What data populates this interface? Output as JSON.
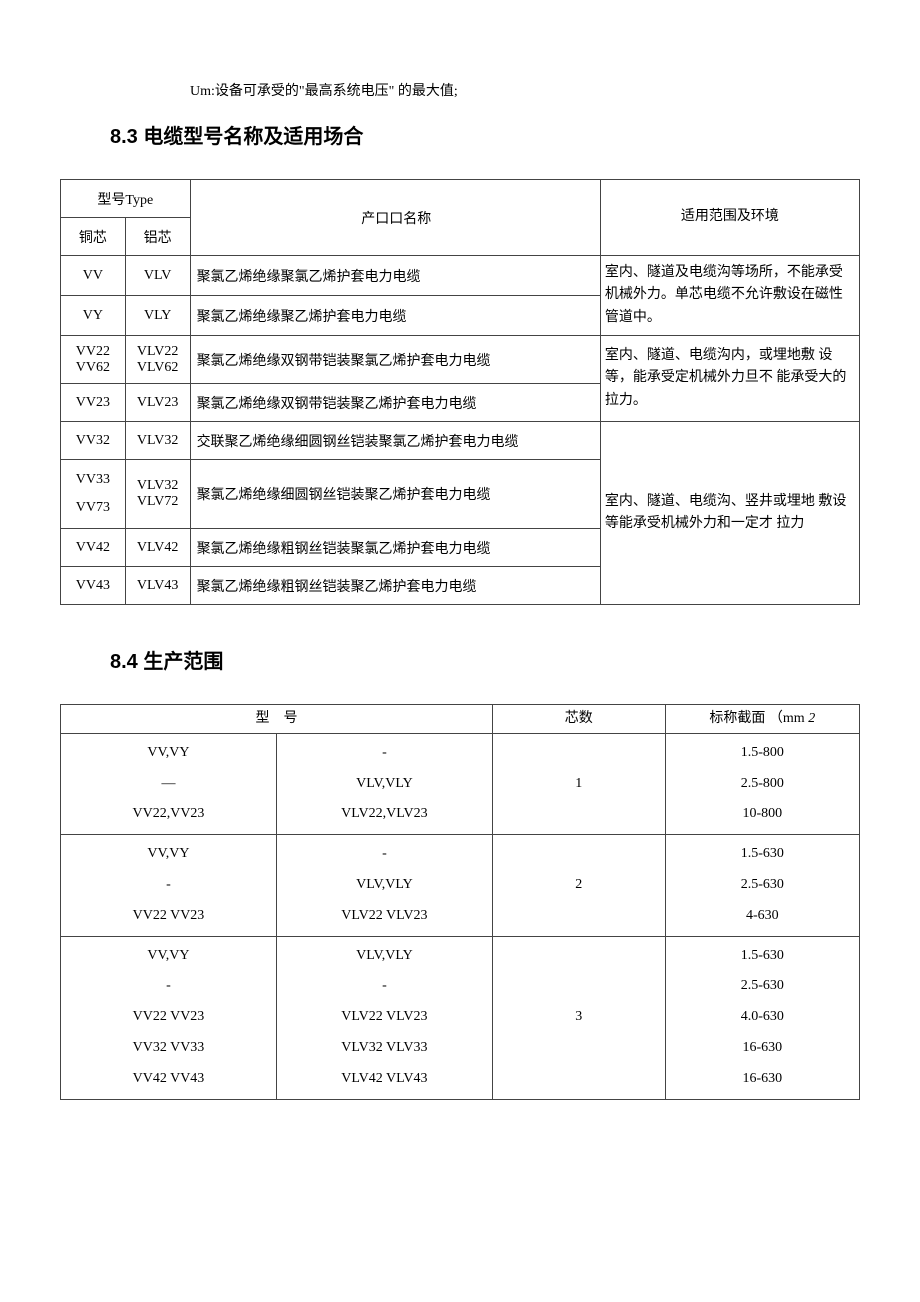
{
  "note_line": "Um:设备可承受的\"最高系统电压\" 的最大值;",
  "section_83_num": "8.3",
  "section_83_title": "电缆型号名称及适用场合",
  "section_84_num": "8.4",
  "section_84_title": "生产范围",
  "table1": {
    "headers": {
      "type_group": "型号Type",
      "copper": "铜芯",
      "aluminum": "铝芯",
      "product_name": "产口口名称",
      "env": "适用范围及环境"
    },
    "rows": [
      {
        "copper": "VV",
        "alum": "VLV",
        "name": "聚氯乙烯绝缘聚氯乙烯护套电力电缆"
      },
      {
        "copper": "VY",
        "alum": "VLY",
        "name": "聚氯乙烯绝缘聚乙烯护套电力电缆"
      },
      {
        "copper": "VV22\nVV62",
        "alum": "VLV22\nVLV62",
        "name": "聚氯乙烯绝缘双钢带铠装聚氯乙烯护套电力电缆"
      },
      {
        "copper": "VV23",
        "alum": "VLV23",
        "name": "聚氯乙烯绝缘双钢带铠装聚乙烯护套电力电缆"
      },
      {
        "copper": "VV32",
        "alum": "VLV32",
        "name": "交联聚乙烯绝缘细圆钢丝铠装聚氯乙烯护套电力电缆"
      },
      {
        "copper": "VV33\nVV73",
        "alum": "VLV32\nVLV72",
        "name": "聚氯乙烯绝缘细圆钢丝铠装聚乙烯护套电力电缆"
      },
      {
        "copper": "VV42",
        "alum": "VLV42",
        "name": "聚氯乙烯绝缘粗钢丝铠装聚氯乙烯护套电力电缆"
      },
      {
        "copper": "VV43",
        "alum": "VLV43",
        "name": "聚氯乙烯绝缘粗钢丝铠装聚乙烯护套电力电缆"
      }
    ],
    "env_texts": [
      "  室内、隧道及电缆沟等场所，不能承受机械外力。单芯电缆不允许敷设在磁性管道中。",
      "  室内、隧道、电缆沟内，或埋地敷 设等，能承受定机械外力旦不 能承受大的拉力。",
      "  室内、隧道、电缆沟、竖井或埋地 敷设等能承受机械外力和一定才 拉力"
    ]
  },
  "table2": {
    "headers": {
      "model": "型",
      "model2": "号",
      "cores": "芯数",
      "cross_section": "标称截面",
      "unit": "（mm",
      "unit_sup": "2"
    },
    "groups": [
      {
        "cores": "1",
        "rows": [
          {
            "a": "VV,VY",
            "b": "-",
            "d": "1.5-800"
          },
          {
            "a": "—",
            "b": "VLV,VLY",
            "d": "2.5-800"
          },
          {
            "a": "VV22,VV23",
            "b": "VLV22,VLV23",
            "d": "10-800"
          }
        ]
      },
      {
        "cores": "2",
        "rows": [
          {
            "a": "VV,VY",
            "b": "-",
            "d": "1.5-630"
          },
          {
            "a": "-",
            "b": "VLV,VLY",
            "d": "2.5-630"
          },
          {
            "a": "VV22 VV23",
            "b": "VLV22 VLV23",
            "d": "4-630"
          }
        ]
      },
      {
        "cores": "3",
        "rows": [
          {
            "a": "VV,VY",
            "b": "VLV,VLY",
            "d": "1.5-630"
          },
          {
            "a": "-",
            "b": "-",
            "d": "2.5-630"
          },
          {
            "a": "VV22 VV23",
            "b": "VLV22 VLV23",
            "d": "4.0-630"
          },
          {
            "a": "VV32 VV33",
            "b": "VLV32 VLV33",
            "d": "16-630"
          },
          {
            "a": "VV42 VV43",
            "b": "VLV42 VLV43",
            "d": "16-630"
          }
        ]
      }
    ]
  },
  "colors": {
    "text": "#000000",
    "border": "#444444",
    "background": "#ffffff"
  }
}
